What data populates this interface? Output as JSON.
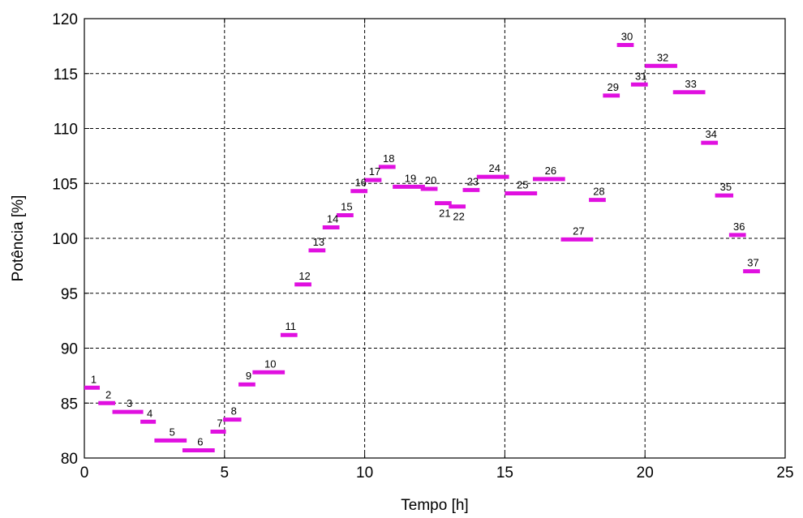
{
  "chart_data": {
    "type": "step-segments",
    "xlabel": "Tempo [h]",
    "ylabel": "Potência [%]",
    "xlim": [
      0,
      25
    ],
    "ylim": [
      80,
      120
    ],
    "xticks": [
      0,
      5,
      10,
      15,
      20,
      25
    ],
    "yticks": [
      80,
      85,
      90,
      95,
      100,
      105,
      110,
      115,
      120
    ],
    "grid": true,
    "series_color": "#e010e0",
    "segments": [
      {
        "label": "1",
        "x0": 0.0,
        "x1": 0.55,
        "y": 86.4
      },
      {
        "label": "2",
        "x0": 0.5,
        "x1": 1.1,
        "y": 85.0
      },
      {
        "label": "3",
        "x0": 1.0,
        "x1": 2.1,
        "y": 84.2
      },
      {
        "label": "4",
        "x0": 2.0,
        "x1": 2.55,
        "y": 83.3
      },
      {
        "label": "5",
        "x0": 2.5,
        "x1": 3.65,
        "y": 81.6
      },
      {
        "label": "6",
        "x0": 3.5,
        "x1": 4.65,
        "y": 80.7
      },
      {
        "label": "7",
        "x0": 4.5,
        "x1": 5.05,
        "y": 82.4
      },
      {
        "label": "8",
        "x0": 4.95,
        "x1": 5.6,
        "y": 83.5
      },
      {
        "label": "9",
        "x0": 5.5,
        "x1": 6.1,
        "y": 86.7
      },
      {
        "label": "10",
        "x0": 6.0,
        "x1": 7.15,
        "y": 87.8
      },
      {
        "label": "11",
        "x0": 7.0,
        "x1": 7.6,
        "y": 91.2
      },
      {
        "label": "12",
        "x0": 7.5,
        "x1": 8.1,
        "y": 95.8
      },
      {
        "label": "13",
        "x0": 8.0,
        "x1": 8.6,
        "y": 98.9
      },
      {
        "label": "14",
        "x0": 8.5,
        "x1": 9.1,
        "y": 101.0
      },
      {
        "label": "15",
        "x0": 9.0,
        "x1": 9.6,
        "y": 102.1
      },
      {
        "label": "16",
        "x0": 9.5,
        "x1": 10.1,
        "y": 104.3
      },
      {
        "label": "17",
        "x0": 10.0,
        "x1": 10.6,
        "y": 105.3
      },
      {
        "label": "18",
        "x0": 10.5,
        "x1": 11.1,
        "y": 106.5
      },
      {
        "label": "19",
        "x0": 11.0,
        "x1": 12.15,
        "y": 104.7
      },
      {
        "label": "20",
        "x0": 12.0,
        "x1": 12.6,
        "y": 104.5
      },
      {
        "label": "21",
        "x0": 12.5,
        "x1": 13.1,
        "y": 103.2
      },
      {
        "label": "22",
        "x0": 13.0,
        "x1": 13.6,
        "y": 102.9
      },
      {
        "label": "23",
        "x0": 13.5,
        "x1": 14.1,
        "y": 104.4
      },
      {
        "label": "24",
        "x0": 14.0,
        "x1": 15.15,
        "y": 105.6
      },
      {
        "label": "25",
        "x0": 15.0,
        "x1": 16.15,
        "y": 104.1
      },
      {
        "label": "26",
        "x0": 16.0,
        "x1": 17.15,
        "y": 105.4
      },
      {
        "label": "27",
        "x0": 17.0,
        "x1": 18.15,
        "y": 99.9
      },
      {
        "label": "28",
        "x0": 18.0,
        "x1": 18.6,
        "y": 103.5
      },
      {
        "label": "29",
        "x0": 18.5,
        "x1": 19.1,
        "y": 113.0
      },
      {
        "label": "30",
        "x0": 19.0,
        "x1": 19.6,
        "y": 117.6
      },
      {
        "label": "31",
        "x0": 19.5,
        "x1": 20.1,
        "y": 114.0
      },
      {
        "label": "32",
        "x0": 20.0,
        "x1": 21.15,
        "y": 115.7
      },
      {
        "label": "33",
        "x0": 21.0,
        "x1": 22.15,
        "y": 113.3
      },
      {
        "label": "34",
        "x0": 22.0,
        "x1": 22.6,
        "y": 108.7
      },
      {
        "label": "35",
        "x0": 22.5,
        "x1": 23.15,
        "y": 103.9
      },
      {
        "label": "36",
        "x0": 23.0,
        "x1": 23.6,
        "y": 100.3
      },
      {
        "label": "37",
        "x0": 23.5,
        "x1": 24.1,
        "y": 97.0
      }
    ]
  }
}
